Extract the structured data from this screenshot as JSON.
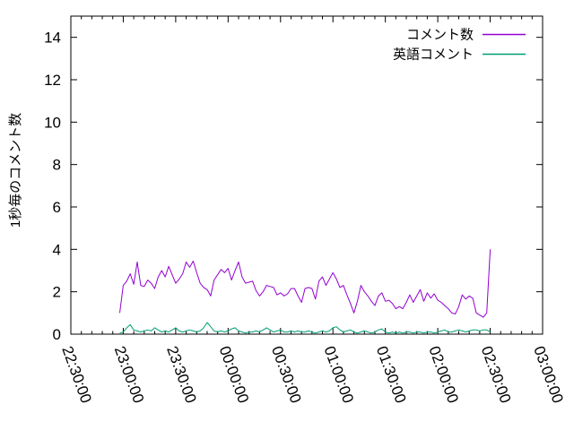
{
  "chart_data": {
    "type": "line",
    "title": "",
    "xlabel": "",
    "ylabel": "1秒毎のコメント数",
    "grid": false,
    "legend_position": "top-right-inside",
    "axis_color": "#000000",
    "background_color": "#ffffff",
    "ylim": [
      0,
      15
    ],
    "yticks": [
      0,
      2,
      4,
      6,
      8,
      10,
      12,
      14
    ],
    "x_axis": {
      "unit": "time HH:MM:SS",
      "range_minutes_from_first_tick": [
        0,
        270
      ],
      "major_tick_step_minutes": 30,
      "minor_tick_step_minutes": 6,
      "ticks": [
        {
          "minute": 0,
          "label": "22:30:00"
        },
        {
          "minute": 30,
          "label": "23:00:00"
        },
        {
          "minute": 60,
          "label": "23:30:00"
        },
        {
          "minute": 90,
          "label": "00:00:00"
        },
        {
          "minute": 120,
          "label": "00:30:00"
        },
        {
          "minute": 150,
          "label": "01:00:00"
        },
        {
          "minute": 180,
          "label": "01:30:00"
        },
        {
          "minute": 210,
          "label": "02:00:00"
        },
        {
          "minute": 240,
          "label": "02:30:00"
        },
        {
          "minute": 270,
          "label": "03:00:00"
        }
      ]
    },
    "series": [
      {
        "name": "コメント数",
        "color": "#9400d3",
        "start_minute": 28,
        "step_minutes": 2,
        "values": [
          1.0,
          2.3,
          2.5,
          2.85,
          2.35,
          3.4,
          2.3,
          2.25,
          2.55,
          2.4,
          2.15,
          2.7,
          3.0,
          2.7,
          3.2,
          2.8,
          2.4,
          2.6,
          2.85,
          3.4,
          3.15,
          3.45,
          2.9,
          2.4,
          2.2,
          2.1,
          1.8,
          2.55,
          2.8,
          3.05,
          2.9,
          3.1,
          2.55,
          3.0,
          3.4,
          2.7,
          2.4,
          2.45,
          2.5,
          2.05,
          1.8,
          2.0,
          2.3,
          2.25,
          2.2,
          1.85,
          1.95,
          1.8,
          1.9,
          2.15,
          2.15,
          1.8,
          1.5,
          2.15,
          2.2,
          2.15,
          1.65,
          2.5,
          2.7,
          2.3,
          2.6,
          2.9,
          2.6,
          2.2,
          2.3,
          1.85,
          1.45,
          1.0,
          1.55,
          2.3,
          2.0,
          1.8,
          1.55,
          1.35,
          1.8,
          1.95,
          1.55,
          1.6,
          1.45,
          1.2,
          1.3,
          1.2,
          1.5,
          1.85,
          1.5,
          1.8,
          2.1,
          1.55,
          1.95,
          1.7,
          1.9,
          1.6,
          1.5,
          1.35,
          1.2,
          1.0,
          0.95,
          1.3,
          1.85,
          1.65,
          1.8,
          1.7,
          1.0,
          0.9,
          0.8,
          1.0,
          4.0
        ]
      },
      {
        "name": "英語コメント",
        "color": "#009e73",
        "start_minute": 28,
        "step_minutes": 2,
        "values": [
          0.05,
          0.1,
          0.3,
          0.45,
          0.2,
          0.15,
          0.1,
          0.15,
          0.2,
          0.15,
          0.3,
          0.2,
          0.1,
          0.15,
          0.1,
          0.2,
          0.3,
          0.15,
          0.1,
          0.15,
          0.2,
          0.15,
          0.1,
          0.15,
          0.3,
          0.55,
          0.35,
          0.15,
          0.1,
          0.15,
          0.1,
          0.15,
          0.25,
          0.3,
          0.15,
          0.1,
          0.05,
          0.1,
          0.1,
          0.15,
          0.1,
          0.2,
          0.3,
          0.2,
          0.1,
          0.15,
          0.2,
          0.1,
          0.1,
          0.15,
          0.1,
          0.15,
          0.1,
          0.1,
          0.15,
          0.1,
          0.05,
          0.1,
          0.15,
          0.1,
          0.15,
          0.3,
          0.35,
          0.2,
          0.1,
          0.15,
          0.2,
          0.1,
          0.05,
          0.1,
          0.15,
          0.1,
          0.05,
          0.1,
          0.2,
          0.25,
          0.1,
          0.05,
          0.1,
          0.05,
          0.1,
          0.05,
          0.1,
          0.1,
          0.05,
          0.1,
          0.1,
          0.05,
          0.1,
          0.1,
          0.05,
          0.1,
          0.15,
          0.2,
          0.1,
          0.1,
          0.15,
          0.2,
          0.15,
          0.1,
          0.15,
          0.2,
          0.2,
          0.15,
          0.2,
          0.2,
          0.1
        ]
      }
    ]
  }
}
